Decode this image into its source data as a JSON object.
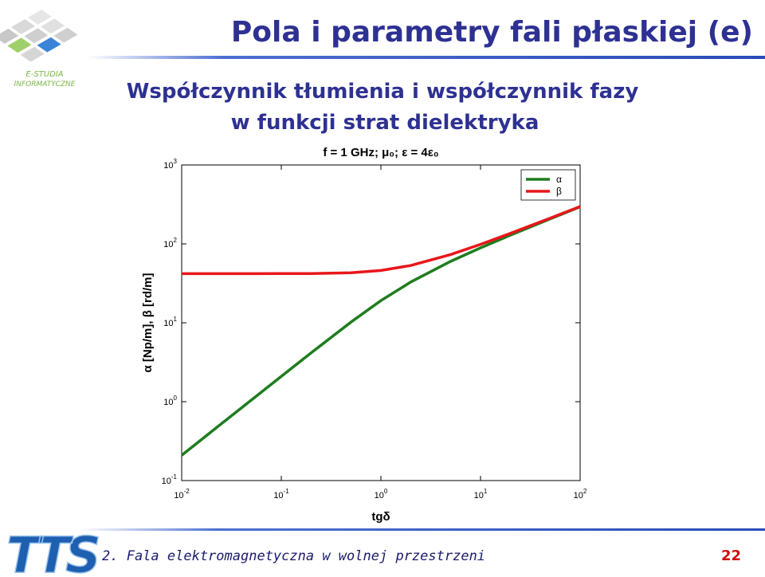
{
  "header": {
    "title": "Pola i parametry fali płaskiej (e)",
    "logo_lines": [
      "E-STUDIA",
      "INFORMATYCZNE"
    ]
  },
  "subtitle": [
    "Współczynnik tłumienia i współczynnik fazy",
    "w funkcji strat dielektryka"
  ],
  "chart_data": {
    "type": "line",
    "title": "f = 1 GHz; μ₀; ε = 4ε₀",
    "x_label": "tgδ",
    "y_label": "α [Np/m], β [rd/m]",
    "x": [
      0.01,
      0.02,
      0.05,
      0.1,
      0.2,
      0.5,
      1,
      2,
      5,
      10,
      20,
      50,
      100
    ],
    "series": [
      {
        "name": "α",
        "color": "#1e7d1e",
        "values": [
          0.209,
          0.419,
          1.047,
          2.09,
          4.17,
          10.18,
          19.07,
          32.9,
          60.0,
          89.1,
          129.2,
          207.4,
          294.8
        ]
      },
      {
        "name": "β",
        "color": "#e8161b",
        "values": [
          41.9,
          41.9,
          41.92,
          41.95,
          42.1,
          43.1,
          46.0,
          53.3,
          73.2,
          98.5,
          135.8,
          211.6,
          297.8
        ]
      }
    ],
    "x_log": true,
    "y_log": true,
    "xlim": [
      0.01,
      100
    ],
    "ylim": [
      0.1,
      1000
    ],
    "xticks": [
      {
        "value": 0.01,
        "label": "10",
        "exponent": "-2"
      },
      {
        "value": 0.1,
        "label": "10",
        "exponent": "-1"
      },
      {
        "value": 1,
        "label": "10",
        "exponent": "0"
      },
      {
        "value": 10,
        "label": "10",
        "exponent": "1"
      },
      {
        "value": 100,
        "label": "10",
        "exponent": "2"
      }
    ],
    "yticks": [
      {
        "value": 0.1,
        "label": "10",
        "exponent": "-1"
      },
      {
        "value": 1,
        "label": "10",
        "exponent": "0"
      },
      {
        "value": 10,
        "label": "10",
        "exponent": "1"
      },
      {
        "value": 100,
        "label": "10",
        "exponent": "2"
      },
      {
        "value": 1000,
        "label": "10",
        "exponent": "3"
      }
    ],
    "legend": "upper right"
  },
  "footer": {
    "logo": "TTS",
    "text": "2. Fala elektromagnetyczna w wolnej przestrzeni",
    "page": "22"
  }
}
